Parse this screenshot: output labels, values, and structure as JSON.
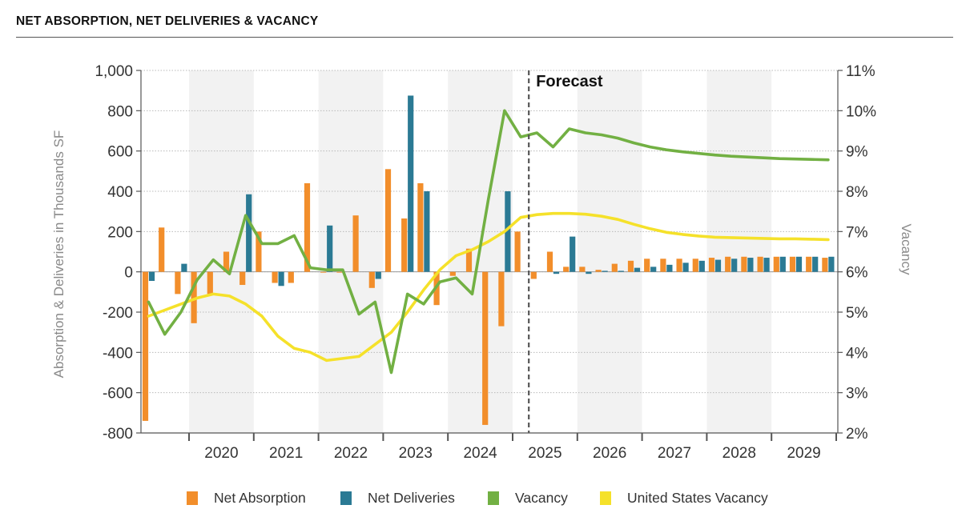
{
  "header": {
    "title": "NET ABSORPTION, NET DELIVERIES & VACANCY"
  },
  "chart_data": {
    "type": "bar",
    "combo": "bar+line",
    "title": "",
    "annotation": "Forecast",
    "forecast_start_index": 24,
    "ylabel": "Absorption & Deliveries in Thousands SF",
    "y2label": "Vacancy",
    "ylim": [
      -800,
      1000
    ],
    "y2lim": [
      2,
      11
    ],
    "yticks": [
      -800,
      -600,
      -400,
      -200,
      0,
      200,
      400,
      600,
      800,
      1000
    ],
    "ytick_labels": [
      "-800",
      "-600",
      "-400",
      "-200",
      "0",
      "200",
      "400",
      "600",
      "800",
      "1,000"
    ],
    "y2ticks": [
      2,
      3,
      4,
      5,
      6,
      7,
      8,
      9,
      10,
      11
    ],
    "y2tick_labels": [
      "2%",
      "3%",
      "4%",
      "5%",
      "6%",
      "7%",
      "8%",
      "9%",
      "10%",
      "11%"
    ],
    "years": [
      "2020",
      "2021",
      "2022",
      "2023",
      "2024",
      "2025",
      "2026",
      "2027",
      "2028",
      "2029"
    ],
    "quarters_per_year": 4,
    "first_quarter": "2019 Q2",
    "legend_position": "bottom",
    "grid": "horizontal dotted",
    "colors": {
      "absorption": "#f28e2b",
      "deliveries": "#2b7a94",
      "vacancy": "#72b043",
      "us_vacancy": "#f5e12a",
      "forecast_line": "#555555",
      "band": "#f2f2f2"
    },
    "series": [
      {
        "name": "Net Absorption",
        "kind": "bar",
        "axis": "left",
        "values": [
          -740,
          220,
          -110,
          -255,
          -110,
          100,
          -65,
          200,
          -55,
          -55,
          440,
          0,
          0,
          280,
          -80,
          510,
          265,
          440,
          -165,
          -20,
          115,
          -760,
          -270,
          200,
          -35,
          100,
          25,
          25,
          10,
          40,
          55,
          65,
          65,
          65,
          65,
          70,
          75,
          75,
          75,
          75,
          75,
          75,
          70
        ]
      },
      {
        "name": "Net Deliveries",
        "kind": "bar",
        "axis": "left",
        "values": [
          -45,
          0,
          40,
          0,
          0,
          0,
          385,
          0,
          -70,
          0,
          0,
          230,
          0,
          0,
          -35,
          0,
          875,
          400,
          0,
          0,
          0,
          0,
          400,
          0,
          0,
          -10,
          175,
          -10,
          5,
          5,
          20,
          25,
          35,
          45,
          55,
          60,
          65,
          70,
          70,
          75,
          75,
          75,
          75
        ]
      },
      {
        "name": "Vacancy",
        "kind": "line",
        "axis": "right",
        "values": [
          5.25,
          4.45,
          5.0,
          5.8,
          6.3,
          5.95,
          7.4,
          6.7,
          6.7,
          6.9,
          6.1,
          6.05,
          6.05,
          4.95,
          5.25,
          3.5,
          5.45,
          5.2,
          5.75,
          5.85,
          5.45,
          7.8,
          10.0,
          9.35,
          9.45,
          9.1,
          9.55,
          9.45,
          9.4,
          9.32,
          9.2,
          9.1,
          9.03,
          8.98,
          8.94,
          8.9,
          8.87,
          8.85,
          8.83,
          8.81,
          8.8,
          8.79,
          8.78
        ]
      },
      {
        "name": "United States Vacancy",
        "kind": "line",
        "axis": "right",
        "values": [
          4.9,
          5.05,
          5.2,
          5.35,
          5.45,
          5.4,
          5.2,
          4.9,
          4.4,
          4.1,
          4.0,
          3.8,
          3.85,
          3.9,
          4.2,
          4.5,
          5.0,
          5.55,
          6.05,
          6.4,
          6.55,
          6.75,
          7.0,
          7.35,
          7.42,
          7.45,
          7.45,
          7.43,
          7.38,
          7.3,
          7.18,
          7.07,
          6.98,
          6.93,
          6.89,
          6.86,
          6.85,
          6.84,
          6.83,
          6.82,
          6.82,
          6.81,
          6.8
        ]
      }
    ]
  }
}
